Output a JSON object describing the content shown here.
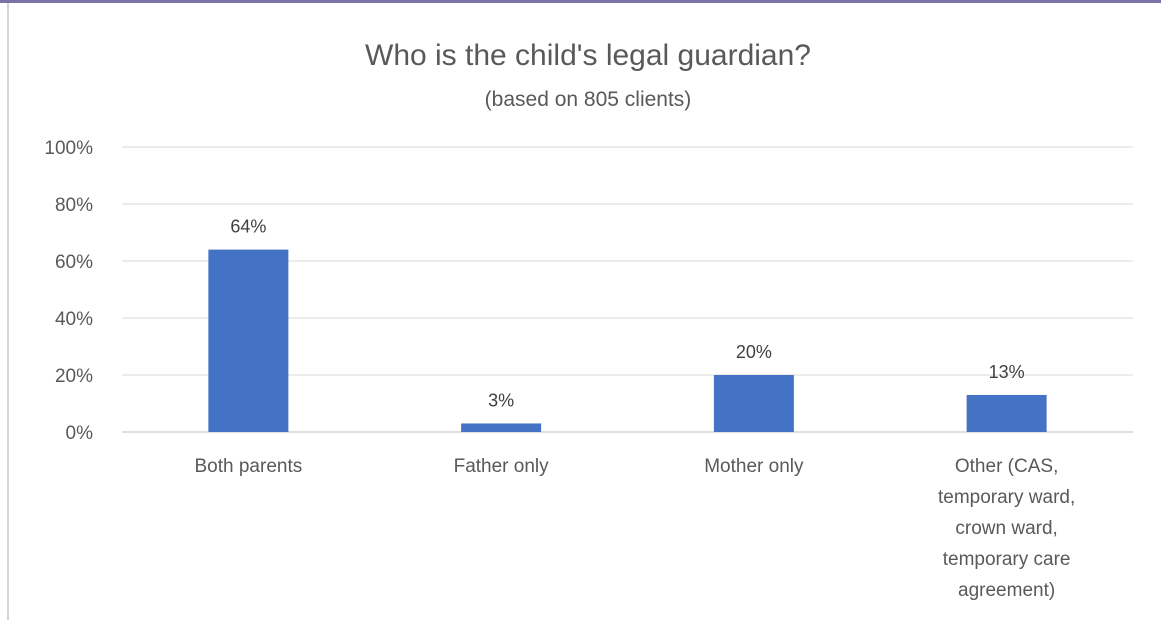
{
  "chart_data": {
    "type": "bar",
    "title": "Who is the child's legal guardian?",
    "subtitle": "(based on 805 clients)",
    "categories": [
      [
        "Both parents"
      ],
      [
        "Father only"
      ],
      [
        "Mother only"
      ],
      [
        "Other (CAS,",
        "temporary ward,",
        "crown ward,",
        "temporary care",
        "agreement)"
      ]
    ],
    "values": [
      64,
      3,
      20,
      13
    ],
    "data_labels": [
      "64%",
      "3%",
      "20%",
      "13%"
    ],
    "y_ticks": [
      "0%",
      "20%",
      "40%",
      "60%",
      "80%",
      "100%"
    ],
    "ylim": [
      0,
      100
    ],
    "xlabel": "",
    "ylabel": "",
    "grid": true,
    "legend": "none",
    "bar_color": "#4472c4"
  }
}
